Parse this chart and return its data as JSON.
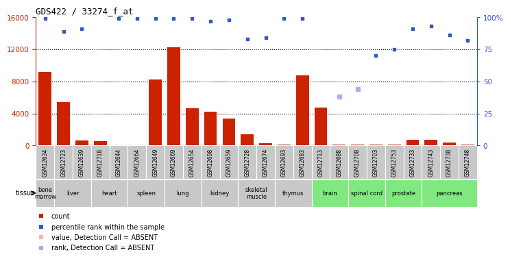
{
  "title": "GDS422 / 33274_f_at",
  "gsm_labels": [
    "GSM12634",
    "GSM12723",
    "GSM12639",
    "GSM12718",
    "GSM12644",
    "GSM12664",
    "GSM12649",
    "GSM12669",
    "GSM12654",
    "GSM12698",
    "GSM12659",
    "GSM12728",
    "GSM12674",
    "GSM12693",
    "GSM12683",
    "GSM12713",
    "GSM12688",
    "GSM12708",
    "GSM12703",
    "GSM12753",
    "GSM12733",
    "GSM12743",
    "GSM12738",
    "GSM12748"
  ],
  "bar_values": [
    9200,
    5400,
    600,
    550,
    50,
    60,
    8200,
    12200,
    4600,
    4200,
    3400,
    1400,
    300,
    150,
    8700,
    4700,
    100,
    100,
    100,
    120,
    750,
    750,
    400,
    150
  ],
  "absent_bar_values": [
    null,
    null,
    null,
    null,
    null,
    null,
    null,
    null,
    null,
    null,
    null,
    null,
    null,
    null,
    null,
    null,
    null,
    null,
    null,
    null,
    null,
    null,
    null,
    null
  ],
  "blue_dot_pct": [
    99,
    89,
    91,
    null,
    99,
    99,
    99,
    99,
    99,
    97,
    98,
    83,
    84,
    99,
    99,
    null,
    null,
    null,
    70,
    75,
    91,
    93,
    86,
    82
  ],
  "absent_rank_pct": [
    null,
    null,
    null,
    null,
    null,
    null,
    null,
    null,
    null,
    null,
    null,
    null,
    null,
    null,
    null,
    null,
    38,
    44,
    null,
    null,
    null,
    null,
    null,
    null
  ],
  "tissues": [
    {
      "label": "bone\nmarrow",
      "start": 0,
      "end": 1,
      "green": false
    },
    {
      "label": "liver",
      "start": 1,
      "end": 3,
      "green": false
    },
    {
      "label": "heart",
      "start": 3,
      "end": 5,
      "green": false
    },
    {
      "label": "spleen",
      "start": 5,
      "end": 7,
      "green": false
    },
    {
      "label": "lung",
      "start": 7,
      "end": 9,
      "green": false
    },
    {
      "label": "kidney",
      "start": 9,
      "end": 11,
      "green": false
    },
    {
      "label": "skeletal\nmuscle",
      "start": 11,
      "end": 13,
      "green": false
    },
    {
      "label": "thymus",
      "start": 13,
      "end": 15,
      "green": false
    },
    {
      "label": "brain",
      "start": 15,
      "end": 17,
      "green": true
    },
    {
      "label": "spinal cord",
      "start": 17,
      "end": 19,
      "green": true
    },
    {
      "label": "prostate",
      "start": 19,
      "end": 21,
      "green": true
    },
    {
      "label": "pancreas",
      "start": 21,
      "end": 24,
      "green": true
    }
  ],
  "bar_color": "#cc2200",
  "absent_bar_color": "#f4b8b0",
  "blue_dot_color": "#3355cc",
  "absent_rank_color": "#aab0e8",
  "ylim_left": [
    0,
    16000
  ],
  "ylim_right": [
    0,
    100
  ],
  "yticks_left": [
    0,
    4000,
    8000,
    12000,
    16000
  ],
  "yticks_right": [
    0,
    25,
    50,
    75,
    100
  ],
  "ytick_labels_right": [
    "0",
    "25",
    "50",
    "75",
    "100%"
  ],
  "background_color": "#ffffff",
  "tissue_bg_color": "#c8c8c8",
  "tissue_green_color": "#7fe87f"
}
